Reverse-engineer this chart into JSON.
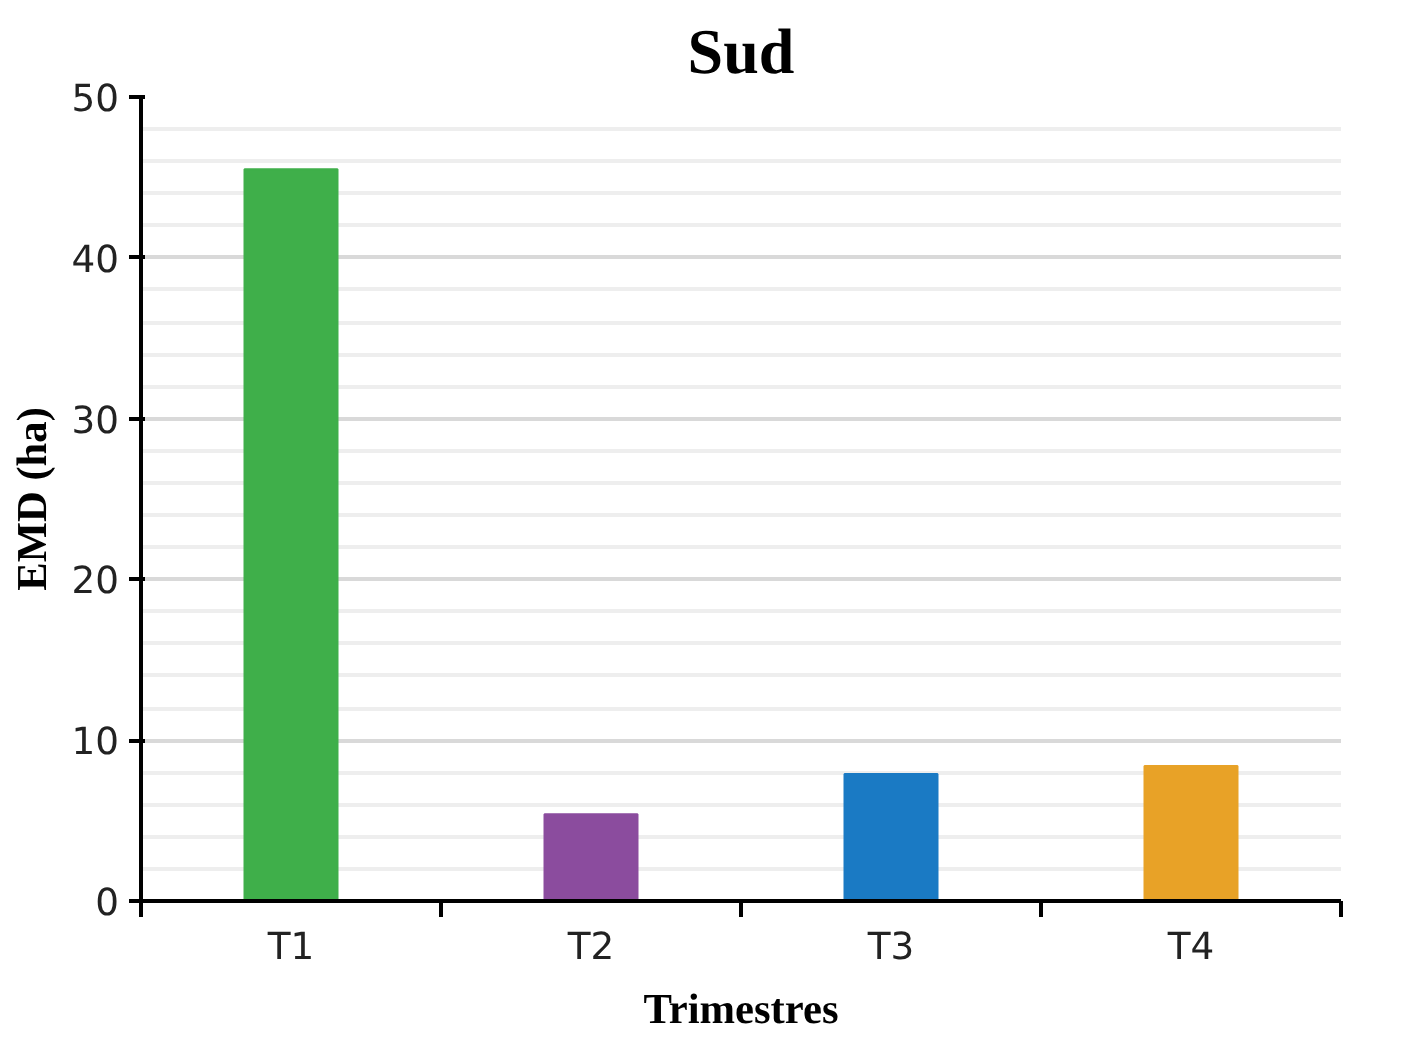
{
  "chart_data": {
    "type": "bar",
    "title": "Sud",
    "xlabel": "Trimestres",
    "ylabel": "EMD (ha)",
    "categories": [
      "T1",
      "T2",
      "T3",
      "T4"
    ],
    "values": [
      45.5,
      5.4,
      7.9,
      8.4
    ],
    "colors": [
      "#3faf4a",
      "#8b4c9e",
      "#1a7ac4",
      "#e8a227"
    ],
    "ylim": [
      0,
      50
    ],
    "yticks": [
      0,
      10,
      20,
      30,
      40,
      50
    ],
    "grid": "y"
  }
}
